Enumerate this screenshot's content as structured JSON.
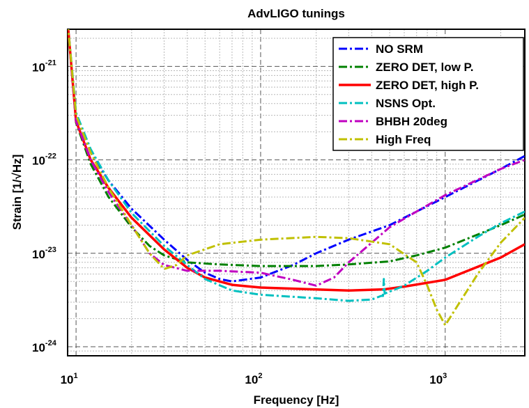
{
  "chart_data": {
    "type": "line",
    "title": "AdvLIGO tunings",
    "xlabel": "Frequency [Hz]",
    "ylabel": "Strain [1/√Hz]",
    "xscale": "log",
    "yscale": "log",
    "xlim": [
      9,
      2700
    ],
    "ylim": [
      8e-25,
      2.5e-21
    ],
    "grid": true,
    "legend_position": "top-right",
    "x_ticks": [
      {
        "value": 10,
        "base": "10",
        "exp": "1"
      },
      {
        "value": 100,
        "base": "10",
        "exp": "2"
      },
      {
        "value": 1000,
        "base": "10",
        "exp": "3"
      }
    ],
    "y_ticks": [
      {
        "value": 1e-24,
        "base": "10",
        "exp": "-24"
      },
      {
        "value": 1e-23,
        "base": "10",
        "exp": "-23"
      },
      {
        "value": 1e-22,
        "base": "10",
        "exp": "-22"
      },
      {
        "value": 1e-21,
        "base": "10",
        "exp": "-21"
      }
    ],
    "series": [
      {
        "name": "NO SRM",
        "color": "#0000ff",
        "dash": "dashdot",
        "width": 3,
        "points": [
          [
            9,
            3e-21
          ],
          [
            10,
            3e-22
          ],
          [
            12,
            1.2e-22
          ],
          [
            15,
            6e-23
          ],
          [
            20,
            3e-23
          ],
          [
            30,
            1.4e-23
          ],
          [
            40,
            8.5e-24
          ],
          [
            50,
            6.2e-24
          ],
          [
            60,
            5.3e-24
          ],
          [
            70,
            5e-24
          ],
          [
            100,
            5.5e-24
          ],
          [
            150,
            7.5e-24
          ],
          [
            200,
            1e-23
          ],
          [
            300,
            1.4e-23
          ],
          [
            500,
            2e-23
          ],
          [
            700,
            2.8e-23
          ],
          [
            1000,
            4e-23
          ],
          [
            2000,
            8e-23
          ],
          [
            2700,
            1.1e-22
          ]
        ]
      },
      {
        "name": "ZERO DET, low P.",
        "color": "#008000",
        "dash": "dashdot",
        "width": 3,
        "points": [
          [
            9,
            3e-21
          ],
          [
            10,
            2.5e-22
          ],
          [
            12,
            9e-23
          ],
          [
            15,
            4e-23
          ],
          [
            20,
            1.9e-23
          ],
          [
            25,
            1.2e-23
          ],
          [
            30,
            9.5e-24
          ],
          [
            40,
            8e-24
          ],
          [
            60,
            7.6e-24
          ],
          [
            100,
            7.3e-24
          ],
          [
            200,
            7.3e-24
          ],
          [
            300,
            7.6e-24
          ],
          [
            500,
            8.2e-24
          ],
          [
            700,
            9.5e-24
          ],
          [
            1000,
            1.15e-23
          ],
          [
            2000,
            2e-23
          ],
          [
            2700,
            2.6e-23
          ]
        ]
      },
      {
        "name": "ZERO DET, high P.",
        "color": "#ff0000",
        "dash": "solid",
        "width": 3.5,
        "points": [
          [
            9,
            3e-21
          ],
          [
            10,
            2.6e-22
          ],
          [
            12,
            1e-22
          ],
          [
            15,
            5e-23
          ],
          [
            20,
            2.4e-23
          ],
          [
            30,
            1.1e-23
          ],
          [
            40,
            7e-24
          ],
          [
            50,
            5.5e-24
          ],
          [
            70,
            4.6e-24
          ],
          [
            100,
            4.3e-24
          ],
          [
            200,
            4.1e-24
          ],
          [
            300,
            4e-24
          ],
          [
            450,
            4.1e-24
          ],
          [
            460,
            4.1e-24
          ],
          [
            600,
            4.4e-24
          ],
          [
            1000,
            5.2e-24
          ],
          [
            2000,
            9e-24
          ],
          [
            2700,
            1.25e-23
          ]
        ]
      },
      {
        "name": "NSNS Opt.",
        "color": "#00c0c0",
        "dash": "dashdot",
        "width": 3,
        "points": [
          [
            9,
            3e-21
          ],
          [
            10,
            3.2e-22
          ],
          [
            12,
            1.3e-22
          ],
          [
            15,
            6e-23
          ],
          [
            20,
            2.7e-23
          ],
          [
            30,
            1.2e-23
          ],
          [
            40,
            7.5e-24
          ],
          [
            50,
            5.3e-24
          ],
          [
            70,
            4e-24
          ],
          [
            100,
            3.6e-24
          ],
          [
            200,
            3.3e-24
          ],
          [
            300,
            3.1e-24
          ],
          [
            400,
            3.2e-24
          ],
          [
            450,
            3.5e-24
          ],
          [
            460,
            3.5e-24
          ],
          [
            465,
            5.3e-24
          ],
          [
            470,
            3.7e-24
          ],
          [
            600,
            4.5e-24
          ],
          [
            800,
            6.5e-24
          ],
          [
            1000,
            9e-24
          ],
          [
            1500,
            1.5e-23
          ],
          [
            2000,
            2.1e-23
          ],
          [
            2700,
            2.8e-23
          ]
        ]
      },
      {
        "name": "BHBH 20deg",
        "color": "#c000c0",
        "dash": "dashdot",
        "width": 3,
        "points": [
          [
            9,
            3e-21
          ],
          [
            10,
            2.6e-22
          ],
          [
            12,
            1e-22
          ],
          [
            15,
            4.5e-23
          ],
          [
            20,
            2e-23
          ],
          [
            25,
            1e-23
          ],
          [
            30,
            7.5e-24
          ],
          [
            40,
            6.5e-24
          ],
          [
            60,
            6.5e-24
          ],
          [
            100,
            6.2e-24
          ],
          [
            150,
            5.2e-24
          ],
          [
            200,
            4.5e-24
          ],
          [
            250,
            5.5e-24
          ],
          [
            300,
            8e-24
          ],
          [
            400,
            1.3e-23
          ],
          [
            500,
            1.9e-23
          ],
          [
            700,
            2.8e-23
          ],
          [
            1000,
            4.2e-23
          ],
          [
            2000,
            8e-23
          ],
          [
            2700,
            1e-22
          ]
        ]
      },
      {
        "name": "High Freq",
        "color": "#c0c000",
        "dash": "dashdot",
        "width": 3,
        "points": [
          [
            9,
            3e-21
          ],
          [
            10,
            3e-22
          ],
          [
            12,
            1.2e-22
          ],
          [
            15,
            5e-23
          ],
          [
            20,
            2e-23
          ],
          [
            25,
            1e-23
          ],
          [
            30,
            6.8e-24
          ],
          [
            35,
            7.5e-24
          ],
          [
            40,
            9.5e-24
          ],
          [
            60,
            1.25e-23
          ],
          [
            100,
            1.4e-23
          ],
          [
            200,
            1.5e-23
          ],
          [
            300,
            1.45e-23
          ],
          [
            500,
            1.25e-23
          ],
          [
            700,
            8e-24
          ],
          [
            800,
            4.5e-24
          ],
          [
            900,
            2.5e-24
          ],
          [
            1000,
            1.7e-24
          ],
          [
            1200,
            3e-24
          ],
          [
            1500,
            6e-24
          ],
          [
            2000,
            1.3e-23
          ],
          [
            2700,
            2.4e-23
          ]
        ]
      }
    ]
  }
}
